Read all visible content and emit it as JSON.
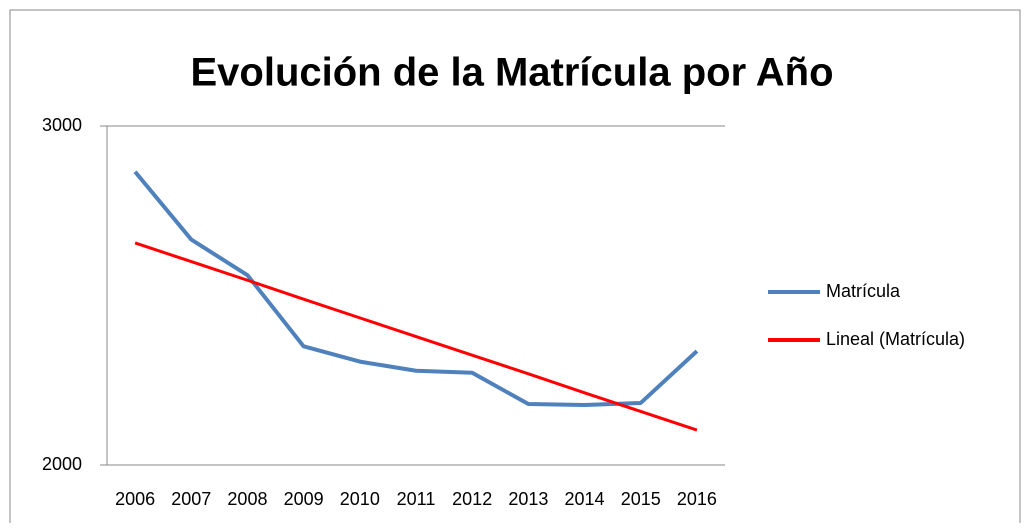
{
  "chart_data": {
    "type": "line",
    "title": "Evolución de la Matrícula por Año",
    "categories": [
      "2006",
      "2007",
      "2008",
      "2009",
      "2010",
      "2011",
      "2012",
      "2013",
      "2014",
      "2015",
      "2016"
    ],
    "series": [
      {
        "name": "Matrícula",
        "color": "#4f81bd",
        "values": [
          2865,
          2665,
          2560,
          2350,
          2305,
          2278,
          2272,
          2180,
          2177,
          2183,
          2336
        ]
      },
      {
        "name": "Lineal (Matrícula)",
        "color": "#ff0000",
        "values": [
          2655,
          2600,
          2545,
          2489,
          2434,
          2379,
          2324,
          2269,
          2213,
          2158,
          2103
        ]
      }
    ],
    "ylim": [
      2000,
      3000
    ],
    "yticks": [
      2000,
      3000
    ],
    "grid": true,
    "legend": "right"
  }
}
